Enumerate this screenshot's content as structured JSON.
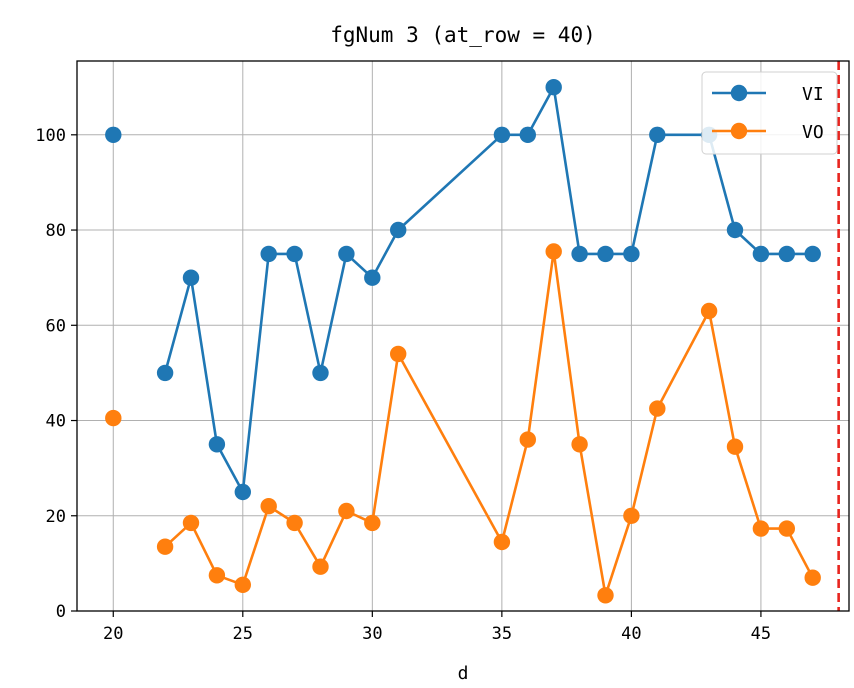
{
  "chart_data": {
    "type": "line",
    "title": "fgNum 3 (at_row = 40)",
    "xlabel": "d",
    "ylabel": "",
    "xlim": [
      18.6,
      48.4
    ],
    "ylim": [
      0,
      115.5
    ],
    "xticks": [
      20,
      25,
      30,
      35,
      40,
      45
    ],
    "yticks": [
      0,
      20,
      40,
      60,
      80,
      100
    ],
    "grid": true,
    "legend_position": "top-right",
    "vline": {
      "x": 48,
      "color": "#e8251f",
      "style": "dashed"
    },
    "series": [
      {
        "name": "VI",
        "color": "#1f77b4",
        "segments": [
          [
            [
              20,
              100
            ]
          ],
          [
            [
              22,
              50
            ],
            [
              23,
              70
            ],
            [
              24,
              35
            ],
            [
              25,
              25
            ],
            [
              26,
              75
            ],
            [
              27,
              75
            ],
            [
              28,
              50
            ],
            [
              29,
              75
            ],
            [
              30,
              70
            ],
            [
              31,
              80
            ],
            [
              35,
              100
            ],
            [
              36,
              100
            ],
            [
              37,
              110
            ],
            [
              38,
              75
            ],
            [
              39,
              75
            ],
            [
              40,
              75
            ],
            [
              41,
              100
            ],
            [
              43,
              100
            ],
            [
              44,
              80
            ],
            [
              45,
              75
            ],
            [
              46,
              75
            ],
            [
              47,
              75
            ]
          ]
        ]
      },
      {
        "name": "VO",
        "color": "#ff7f0e",
        "segments": [
          [
            [
              20,
              40.5
            ]
          ],
          [
            [
              22,
              13.5
            ],
            [
              23,
              18.5
            ],
            [
              24,
              7.5
            ],
            [
              25,
              5.5
            ],
            [
              26,
              22
            ],
            [
              27,
              18.5
            ],
            [
              28,
              9.3
            ],
            [
              29,
              21
            ],
            [
              30,
              18.5
            ],
            [
              31,
              54
            ],
            [
              35,
              14.5
            ],
            [
              36,
              36
            ],
            [
              37,
              75.5
            ],
            [
              38,
              35
            ],
            [
              39,
              3.3
            ],
            [
              40,
              20
            ],
            [
              41,
              42.5
            ],
            [
              43,
              63
            ],
            [
              44,
              34.5
            ],
            [
              45,
              17.3
            ],
            [
              46,
              17.3
            ],
            [
              47,
              7
            ]
          ]
        ]
      }
    ]
  }
}
